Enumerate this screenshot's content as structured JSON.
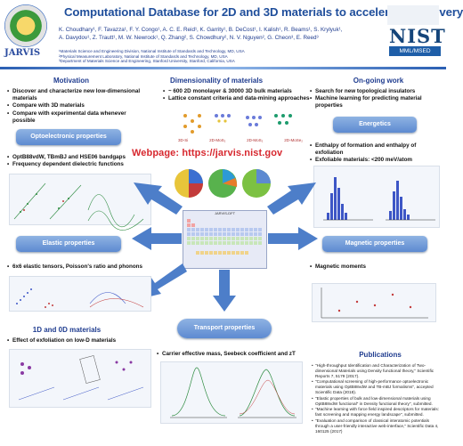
{
  "title": "Computational Database for 2D and 3D materials to accelerate discovery",
  "authors_line1": "K. Choudhary¹, F. Tavazza¹, F. Y. Congo¹, A. C. E. Reid¹, K. Garrity¹, B. DeCost¹, I. Kalish¹, R. Beams¹, S. Krylyuk¹,",
  "authors_line2": "A. Davydov¹, Z. Trautt¹, M. W. Newrock¹, Q. Zhang², S. Chowdhury², N. V. Nguyen², G. Cheon³, E. Reed³",
  "affiliations": [
    "¹Materials Science and Engineering Division, National Institute of Standards and Technology, MD, USA",
    "²Physical Measurement Laboratory, National Institute of Standards and Technology, MD, USA",
    "³Department of Materials Science and Engineering, Stanford University, Stanford, California, USA"
  ],
  "logos": {
    "jarvis": "JARVIS",
    "nist": "NIST",
    "mml": "MML/MSED"
  },
  "motivation": {
    "heading": "Motivation",
    "items": [
      "Discover and characterize new low-dimensional materials",
      "Compare with 3D materials",
      "Compare with experimental data whenever possible"
    ]
  },
  "dimensionality": {
    "heading": "Dimensionality of materials",
    "items": [
      "~ 600 2D monolayer & 30000 3D bulk materials",
      "Lattice constant criteria and data-mining approaches"
    ],
    "struct_labels": [
      "3D-Si",
      "2D-MoS₂",
      "2D-MoS₂",
      "2D-MoSe₂"
    ]
  },
  "ongoing": {
    "heading": "On-going work",
    "items": [
      "Search for new topological insulators",
      "Machine learning for predicting material properties"
    ]
  },
  "energetics": {
    "label": "Energetics",
    "items": [
      "Enthalpy of formation and enthalpy of exfoliation",
      "Exfoliable materials: <200 meV/atom"
    ]
  },
  "optoelectronic": {
    "label": "Optoelectronic properties",
    "items": [
      "OptB88vdW, TBmBJ and HSE06 bandgaps",
      "Frequency dependent dielectric functions"
    ]
  },
  "webpage": "Webpage: https://jarvis.nist.gov",
  "elastic": {
    "label": "Elastic properties",
    "items": [
      "6x6 elastic tensors, Poisson's ratio and phonons"
    ]
  },
  "magnetic": {
    "label": "Magnetic properties",
    "items": [
      "Magnetic moments"
    ]
  },
  "lowd": {
    "heading": "1D and 0D materials",
    "items": [
      "Effect of exfoliation on low-D materials"
    ]
  },
  "transport": {
    "label": "Transport properties",
    "items": [
      "Carrier effective mass, Seebeck coefficient and zT"
    ]
  },
  "publications": {
    "heading": "Publications",
    "items": [
      "\"High-throughput Identification and Characterization of Two-dimensional Materials using Density functional theory,\" Scientific Reports 7, 5179 (2017).",
      "\"Computational screening of high-performance optoelectronic materials using OptB88vdW and TB-mBJ formalisms\", accepted Scientific Data (2018).",
      "\"Elastic properties of bulk and low-dimensional materials using OptB88vdW functional\" in Density functional theory\", submitted.",
      "\"Machine learning with force field inspired descriptors for materials: fast screening and mapping energy landscape\", submitted.",
      "\"Evaluation and comparison of classical interatomic potentials through a user-friendly interactive web-interface,\" Scientific Data 4, 160125 (2017)"
    ]
  },
  "periodic_table_title": "JARVIS-DFT",
  "colors": {
    "title": "#1f4e9b",
    "accent": "#4d7ec9",
    "webpage": "#d7282f"
  }
}
